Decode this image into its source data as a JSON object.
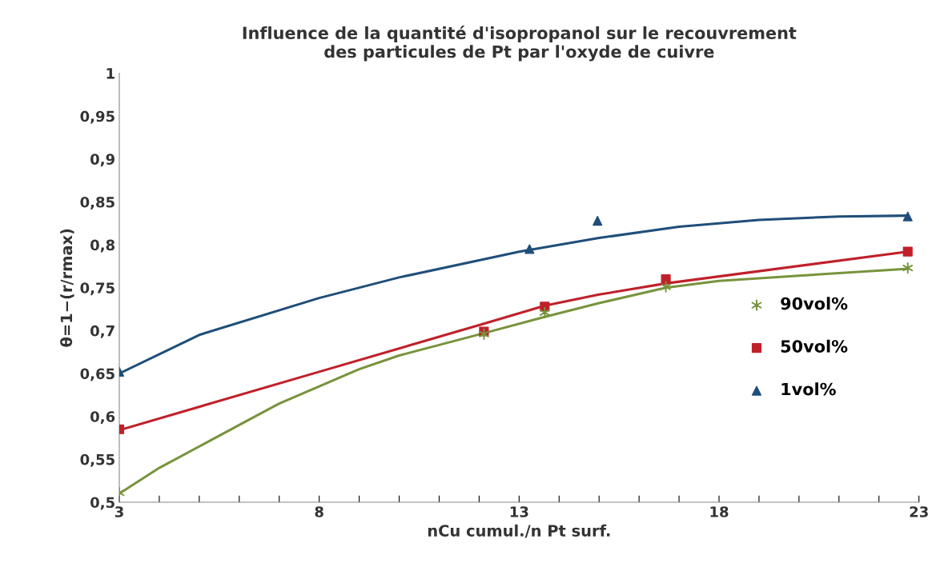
{
  "chart_data": {
    "type": "scatter",
    "title": "Influence de la quantité d'isopropanol sur le recouvrement\ndes particules de Pt par l'oxyde de cuivre",
    "xlabel": "nCu cumul./n Pt surf.",
    "ylabel": "θ=1−(r/rmax)",
    "xlim": [
      3,
      23
    ],
    "ylim": [
      0.5,
      1
    ],
    "xticks": [
      3,
      {
        "value": 4,
        "label": null
      },
      {
        "value": 5,
        "label": null
      },
      {
        "value": 6,
        "label": null
      },
      {
        "value": 7,
        "label": null
      },
      8,
      {
        "value": 9,
        "label": null
      },
      {
        "value": 10,
        "label": null
      },
      {
        "value": 11,
        "label": null
      },
      {
        "value": 12,
        "label": null
      },
      13,
      {
        "value": 14,
        "label": null
      },
      {
        "value": 15,
        "label": null
      },
      {
        "value": 16,
        "label": null
      },
      {
        "value": 17,
        "label": null
      },
      18,
      {
        "value": 19,
        "label": null
      },
      {
        "value": 20,
        "label": null
      },
      {
        "value": 21,
        "label": null
      },
      {
        "value": 22,
        "label": null
      },
      23
    ],
    "yticks": [
      {
        "value": 0.5,
        "label": "0,5"
      },
      {
        "value": 0.55,
        "label": "0,55"
      },
      {
        "value": 0.6,
        "label": "0,6"
      },
      {
        "value": 0.65,
        "label": "0,65"
      },
      {
        "value": 0.7,
        "label": "0,7"
      },
      {
        "value": 0.75,
        "label": "0,75"
      },
      {
        "value": 0.8,
        "label": "0,8"
      },
      {
        "value": 0.85,
        "label": "0,85"
      },
      {
        "value": 0.9,
        "label": "0,9"
      },
      {
        "value": 0.95,
        "label": "0,95"
      },
      1
    ],
    "grid": false,
    "legend": "right",
    "series": [
      {
        "type": "line",
        "color": "#77933c",
        "marker": "none",
        "x": [
          3,
          4,
          5,
          6,
          7,
          8,
          9,
          10,
          12.12,
          13.64,
          15,
          16.67,
          18,
          20,
          22.72
        ],
        "values": [
          0.51,
          0.54,
          0.565,
          0.59,
          0.615,
          0.635,
          0.655,
          0.671,
          0.697,
          0.716,
          0.732,
          0.75,
          0.758,
          0.764,
          0.772
        ]
      },
      {
        "type": "line",
        "color": "#c0202a",
        "marker": "none",
        "x": [
          3,
          8,
          12.12,
          13.64,
          15,
          16.67,
          22.72
        ],
        "values": [
          0.584,
          0.652,
          0.708,
          0.729,
          0.742,
          0.755,
          0.792
        ]
      },
      {
        "type": "line",
        "color": "#1f4e79",
        "marker": "none",
        "x": [
          3,
          5,
          8,
          10,
          13,
          15,
          17,
          19,
          21,
          22.72
        ],
        "values": [
          0.65,
          0.695,
          0.738,
          0.762,
          0.792,
          0.808,
          0.821,
          0.829,
          0.833,
          0.834
        ]
      },
      {
        "name": "90vol%",
        "color": "#77933c",
        "marker": "cross",
        "x": [
          3,
          12.12,
          13.64,
          16.67,
          22.72
        ],
        "values": [
          0.511,
          0.696,
          0.721,
          0.751,
          0.773
        ]
      },
      {
        "name": "50vol%",
        "color": "#c0202a",
        "marker": "square",
        "x": [
          3,
          12.12,
          13.64,
          16.67,
          22.72
        ],
        "values": [
          0.585,
          0.699,
          0.728,
          0.76,
          0.792
        ]
      },
      {
        "name": "1vol%",
        "color": "#1f4e79",
        "marker": "triangle",
        "x": [
          3,
          13.26,
          14.96,
          22.72
        ],
        "values": [
          0.652,
          0.795,
          0.828,
          0.833
        ]
      }
    ]
  }
}
